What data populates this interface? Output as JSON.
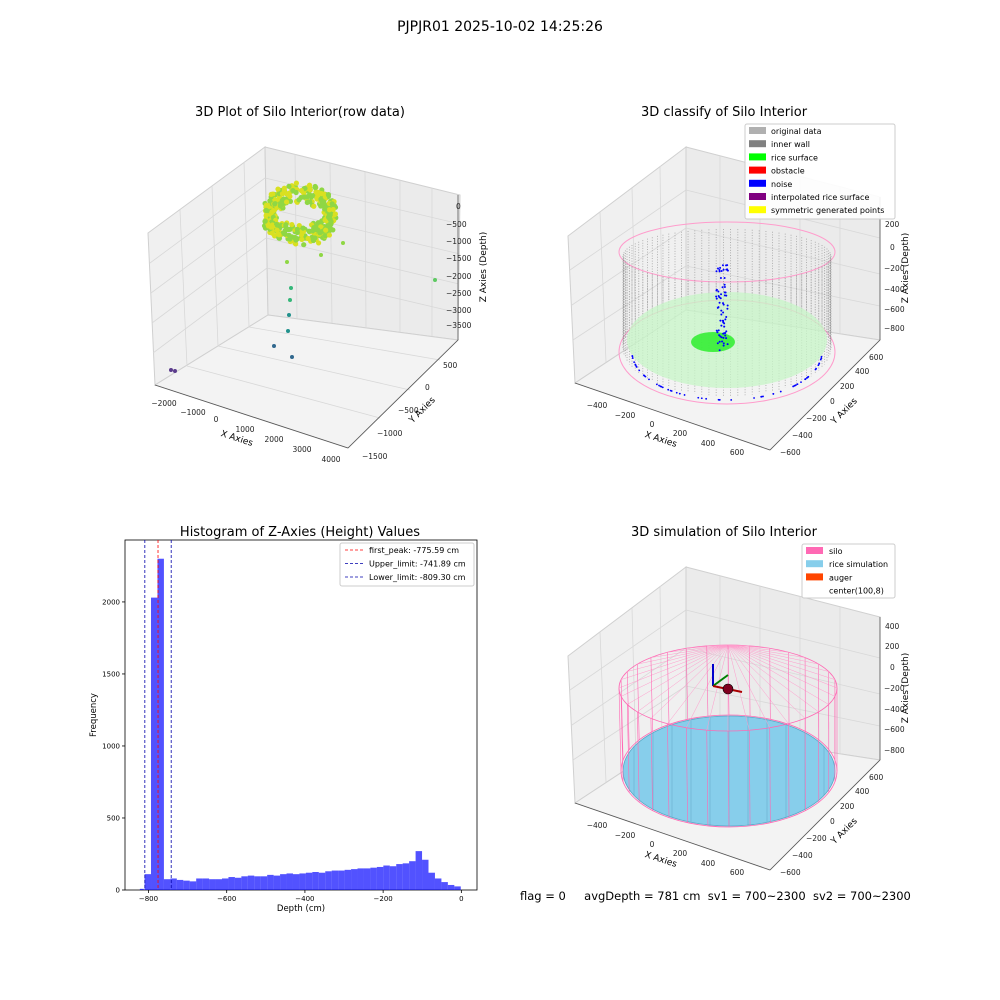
{
  "suptitle": "PJPJR01 2025-10-02 14:25:26",
  "status_bar": {
    "flag": "flag = 0",
    "avg_depth": "avgDepth = 781 cm",
    "sv1": "sv1 = 700~2300",
    "sv2": "sv2 = 700~2300"
  },
  "chart_data": [
    {
      "type": "scatter",
      "projection": "3d",
      "title": "3D Plot of Silo Interior(row data)",
      "xlabel": "X Axies",
      "ylabel": "Y Axies",
      "zlabel": "Z Axies (Depth)",
      "x_ticks": [
        "−2000",
        "−1000",
        "0",
        "1000",
        "2000",
        "3000",
        "4000"
      ],
      "y_ticks": [
        "−1500",
        "−1000",
        "−500",
        "0",
        "500"
      ],
      "z_ticks": [
        "−3500",
        "−3000",
        "−2500",
        "−2000",
        "−1500",
        "−1000",
        "−500",
        "0"
      ],
      "colormap": "viridis",
      "grid": true
    },
    {
      "type": "scatter",
      "projection": "3d",
      "title": "3D classify of Silo Interior",
      "xlabel": "X Axies",
      "ylabel": "Y Axies",
      "zlabel": "Z Axies (Depth)",
      "x_ticks": [
        "−400",
        "−200",
        "0",
        "200",
        "400",
        "600"
      ],
      "y_ticks": [
        "−600",
        "−400",
        "−200",
        "0",
        "200",
        "400",
        "600"
      ],
      "z_ticks": [
        "−800",
        "−600",
        "−400",
        "−200",
        "0",
        "200"
      ],
      "legend_position": "top-right",
      "legend": [
        {
          "label": "original data",
          "color": "#b0b0b0"
        },
        {
          "label": "inner wall",
          "color": "#808080"
        },
        {
          "label": "rice surface",
          "color": "#00ff00"
        },
        {
          "label": "obstacle",
          "color": "#ff0000"
        },
        {
          "label": "noise",
          "color": "#0000ff"
        },
        {
          "label": "interpolated rice surface",
          "color": "#800080"
        },
        {
          "label": "symmetric generated points",
          "color": "#ffff00"
        }
      ],
      "grid": true
    },
    {
      "type": "bar",
      "title": "Histogram of Z-Axies (Height) Values",
      "xlabel": "Depth (cm)",
      "ylabel": "Frequency",
      "xlim": [
        -860,
        40
      ],
      "ylim": [
        0,
        2430
      ],
      "x_ticks": [
        -800,
        -600,
        -400,
        -200,
        0
      ],
      "y_ticks": [
        0,
        500,
        1000,
        1500,
        2000
      ],
      "bar_color": "#0000ff",
      "bin_width": 16.5,
      "bins_start": -810,
      "values": [
        110,
        2030,
        2300,
        75,
        80,
        70,
        65,
        60,
        80,
        80,
        75,
        75,
        80,
        90,
        85,
        95,
        100,
        95,
        95,
        105,
        100,
        110,
        115,
        110,
        115,
        120,
        125,
        120,
        130,
        135,
        135,
        140,
        145,
        150,
        150,
        155,
        160,
        170,
        165,
        180,
        185,
        200,
        270,
        210,
        120,
        80,
        55,
        35,
        25
      ],
      "small_bins": [
        {
          "x": -822,
          "value": 8
        }
      ],
      "reference_lines": [
        {
          "label": "first_peak: -775.59 cm",
          "value": -775.59,
          "color": "#ff0000"
        },
        {
          "label": "Upper_limit: -741.89 cm",
          "value": -741.89,
          "color": "#0000aa"
        },
        {
          "label": "Lower_limit: -809.30 cm",
          "value": -809.3,
          "color": "#0000aa"
        }
      ],
      "legend_position": "top-right",
      "grid": false
    },
    {
      "type": "surface",
      "projection": "3d",
      "title": "3D simulation of Silo Interior",
      "xlabel": "X Axies",
      "ylabel": "Y Axies",
      "zlabel": "Z Axies (Depth)",
      "x_ticks": [
        "−400",
        "−200",
        "0",
        "200",
        "400",
        "600"
      ],
      "y_ticks": [
        "−600",
        "−400",
        "−200",
        "0",
        "200",
        "400",
        "600"
      ],
      "z_ticks": [
        "−800",
        "−600",
        "−400",
        "−200",
        "0",
        "200",
        "400"
      ],
      "legend_position": "top-right",
      "legend": [
        {
          "label": "silo",
          "color": "#ff69b4"
        },
        {
          "label": "rice simulation",
          "color": "#87ceeb"
        },
        {
          "label": "auger",
          "color": "#ff4500"
        },
        {
          "label": "center(100,8)",
          "color": null
        }
      ],
      "grid": true
    }
  ]
}
